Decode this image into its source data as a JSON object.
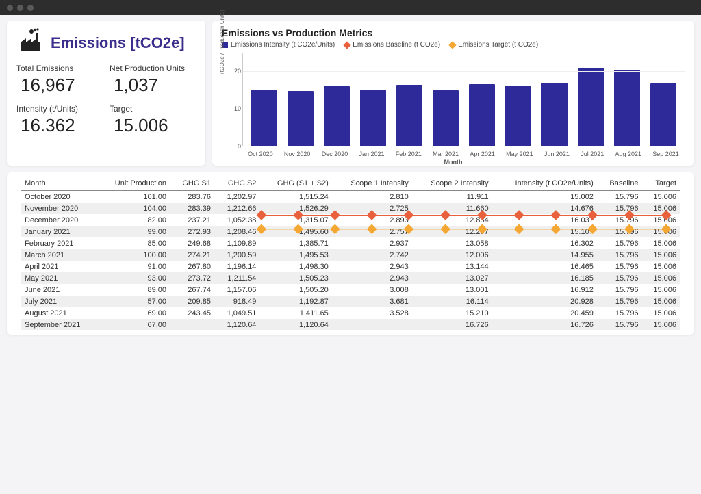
{
  "kpi": {
    "title": "Emissions [tCO2e]",
    "total_emissions_label": "Total Emissions",
    "total_emissions_value": "16,967",
    "net_production_label": "Net Production Units",
    "net_production_value": "1,037",
    "intensity_label": "Intensity (t/Units)",
    "intensity_value": "16.362",
    "target_label": "Target",
    "target_value": "15.006"
  },
  "chart": {
    "title": "Emissions vs Production Metrics",
    "legend": {
      "intensity": "Emissions Intensity (t CO2e/Units)",
      "baseline": "Emissions Baseline (t CO2e)",
      "target": "Emissions Target (t CO2e)"
    },
    "y_axis_label": "(tCO2e / Production Units)",
    "x_axis_label": "Month",
    "y_ticks": [
      0,
      10,
      20
    ],
    "ylim_max": 25,
    "categories": [
      "Oct 2020",
      "Nov 2020",
      "Dec 2020",
      "Jan 2021",
      "Feb 2021",
      "Mar 2021",
      "Apr 2021",
      "May 2021",
      "Jun 2021",
      "Jul 2021",
      "Aug 2021",
      "Sep 2021"
    ],
    "intensity_values": [
      15.002,
      14.676,
      16.037,
      15.107,
      16.302,
      14.955,
      16.465,
      16.185,
      16.912,
      20.928,
      20.459,
      16.726
    ],
    "baseline_value": 15.796,
    "target_value": 15.006,
    "colors": {
      "bar": "#2e2a9a",
      "baseline": "#e8603c",
      "target": "#f4a733",
      "grid": "#eeeeee",
      "axis_text": "#555555",
      "background": "#ffffff"
    }
  },
  "table": {
    "columns": [
      "Month",
      "Unit Production",
      "GHG S1",
      "GHG S2",
      "GHG (S1 + S2)",
      "Scope 1 Intensity",
      "Scope 2 Intensity",
      "Intensity (t CO2e/Units)",
      "Baseline",
      "Target"
    ],
    "rows": [
      [
        "October 2020",
        "101.00",
        "283.76",
        "1,202.97",
        "1,515.24",
        "2.810",
        "11.911",
        "15.002",
        "15.796",
        "15.006"
      ],
      [
        "November 2020",
        "104.00",
        "283.39",
        "1,212.66",
        "1,526.29",
        "2.725",
        "11.660",
        "14.676",
        "15.796",
        "15.006"
      ],
      [
        "December 2020",
        "82.00",
        "237.21",
        "1,052.38",
        "1,315.07",
        "2.893",
        "12.834",
        "16.037",
        "15.796",
        "15.006"
      ],
      [
        "January 2021",
        "99.00",
        "272.93",
        "1,208.46",
        "1,495.60",
        "2.757",
        "12.207",
        "15.107",
        "15.796",
        "15.006"
      ],
      [
        "February 2021",
        "85.00",
        "249.68",
        "1,109.89",
        "1,385.71",
        "2.937",
        "13.058",
        "16.302",
        "15.796",
        "15.006"
      ],
      [
        "March 2021",
        "100.00",
        "274.21",
        "1,200.59",
        "1,495.53",
        "2.742",
        "12.006",
        "14.955",
        "15.796",
        "15.006"
      ],
      [
        "April 2021",
        "91.00",
        "267.80",
        "1,196.14",
        "1,498.30",
        "2.943",
        "13.144",
        "16.465",
        "15.796",
        "15.006"
      ],
      [
        "May 2021",
        "93.00",
        "273.72",
        "1,211.54",
        "1,505.23",
        "2.943",
        "13.027",
        "16.185",
        "15.796",
        "15.006"
      ],
      [
        "June 2021",
        "89.00",
        "267.74",
        "1,157.06",
        "1,505.20",
        "3.008",
        "13.001",
        "16.912",
        "15.796",
        "15.006"
      ],
      [
        "July 2021",
        "57.00",
        "209.85",
        "918.49",
        "1,192.87",
        "3.681",
        "16.114",
        "20.928",
        "15.796",
        "15.006"
      ],
      [
        "August 2021",
        "69.00",
        "243.45",
        "1,049.51",
        "1,411.65",
        "3.528",
        "15.210",
        "20.459",
        "15.796",
        "15.006"
      ],
      [
        "September 2021",
        "67.00",
        "",
        "1,120.64",
        "1,120.64",
        "",
        "16.726",
        "16.726",
        "15.796",
        "15.006"
      ]
    ]
  }
}
